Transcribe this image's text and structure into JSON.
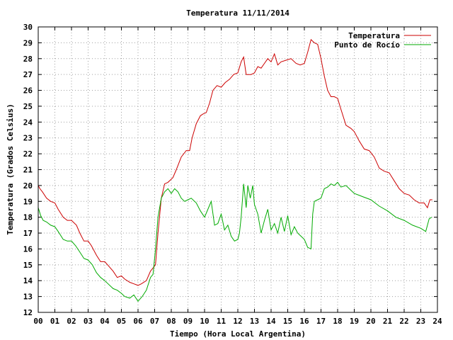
{
  "chart_data": {
    "type": "line",
    "title": "Temperatura 11/11/2014",
    "xlabel": "Tiempo (Hora Local Argentina)",
    "ylabel": "Temperatura (Grados Celsius)",
    "xlim": [
      0,
      24
    ],
    "ylim": [
      12,
      30
    ],
    "x_ticks": [
      "00",
      "01",
      "02",
      "03",
      "04",
      "05",
      "06",
      "07",
      "08",
      "09",
      "10",
      "11",
      "12",
      "13",
      "14",
      "15",
      "16",
      "17",
      "18",
      "19",
      "20",
      "21",
      "22",
      "23",
      "24"
    ],
    "y_ticks": [
      "12",
      "13",
      "14",
      "15",
      "16",
      "17",
      "18",
      "19",
      "20",
      "21",
      "22",
      "23",
      "24",
      "25",
      "26",
      "27",
      "28",
      "29",
      "30"
    ],
    "grid": true,
    "legend_position": "top-right",
    "series": [
      {
        "name": "Temperatura",
        "color": "#cc0000",
        "x": [
          0,
          0.1,
          0.25,
          0.5,
          0.75,
          1,
          1.2,
          1.5,
          1.75,
          2,
          2.3,
          2.5,
          2.75,
          3,
          3.2,
          3.5,
          3.75,
          4,
          4.25,
          4.5,
          4.75,
          5,
          5.2,
          5.5,
          5.75,
          6,
          6.2,
          6.5,
          6.75,
          6.9,
          7.05,
          7.2,
          7.4,
          7.6,
          7.8,
          8.1,
          8.3,
          8.6,
          8.9,
          9.1,
          9.25,
          9.5,
          9.75,
          9.9,
          10.1,
          10.3,
          10.5,
          10.75,
          11,
          11.25,
          11.5,
          11.75,
          12.0,
          12.2,
          12.35,
          12.5,
          12.8,
          13.0,
          13.2,
          13.4,
          13.6,
          13.8,
          14.0,
          14.2,
          14.4,
          14.6,
          14.9,
          15.2,
          15.5,
          15.75,
          16.0,
          16.2,
          16.4,
          16.6,
          16.8,
          17.0,
          17.2,
          17.4,
          17.6,
          17.8,
          18.0,
          18.2,
          18.5,
          18.8,
          19.0,
          19.3,
          19.6,
          19.9,
          20.2,
          20.5,
          20.8,
          21.1,
          21.4,
          21.7,
          22.0,
          22.3,
          22.6,
          22.9,
          23.2,
          23.4,
          23.55,
          23.7
        ],
        "values": [
          20.0,
          19.8,
          19.6,
          19.2,
          19.0,
          18.9,
          18.5,
          18.0,
          17.8,
          17.8,
          17.5,
          17.0,
          16.5,
          16.5,
          16.2,
          15.6,
          15.2,
          15.2,
          14.9,
          14.6,
          14.2,
          14.3,
          14.1,
          13.9,
          13.8,
          13.7,
          13.8,
          14.0,
          14.6,
          14.8,
          15.0,
          17.0,
          19.2,
          20.1,
          20.2,
          20.5,
          21.0,
          21.8,
          22.2,
          22.2,
          23.0,
          23.9,
          24.4,
          24.5,
          24.6,
          25.2,
          26.0,
          26.3,
          26.2,
          26.5,
          26.7,
          27.0,
          27.1,
          27.8,
          28.1,
          27.0,
          27.0,
          27.1,
          27.5,
          27.4,
          27.7,
          28.0,
          27.8,
          28.3,
          27.6,
          27.8,
          27.9,
          28.0,
          27.7,
          27.6,
          27.7,
          28.4,
          29.2,
          29.0,
          28.9,
          28.0,
          26.9,
          26.0,
          25.6,
          25.6,
          25.5,
          24.8,
          23.8,
          23.6,
          23.4,
          22.8,
          22.3,
          22.2,
          21.8,
          21.1,
          20.9,
          20.8,
          20.3,
          19.8,
          19.5,
          19.4,
          19.1,
          18.9,
          18.9,
          18.6,
          19.1,
          19.1
        ]
      },
      {
        "name": "Punto de Rocío",
        "color": "#00aa00",
        "x": [
          0,
          0.15,
          0.3,
          0.5,
          0.75,
          1,
          1.2,
          1.5,
          1.75,
          2,
          2.25,
          2.5,
          2.75,
          3,
          3.25,
          3.5,
          3.75,
          4,
          4.2,
          4.5,
          4.75,
          5,
          5.2,
          5.5,
          5.75,
          6,
          6.25,
          6.5,
          6.75,
          6.9,
          7.05,
          7.2,
          7.4,
          7.6,
          7.8,
          8.0,
          8.2,
          8.4,
          8.6,
          8.8,
          9.0,
          9.2,
          9.5,
          9.75,
          10.0,
          10.2,
          10.4,
          10.6,
          10.8,
          11.0,
          11.2,
          11.4,
          11.6,
          11.8,
          12.0,
          12.1,
          12.2,
          12.35,
          12.5,
          12.6,
          12.75,
          12.9,
          13.0,
          13.2,
          13.4,
          13.6,
          13.8,
          14.0,
          14.2,
          14.4,
          14.6,
          14.8,
          15.0,
          15.2,
          15.4,
          15.6,
          15.8,
          16.0,
          16.2,
          16.4,
          16.5,
          16.6,
          16.8,
          17.0,
          17.2,
          17.4,
          17.6,
          17.8,
          18.0,
          18.2,
          18.5,
          18.8,
          19.0,
          19.5,
          20.0,
          20.5,
          21.0,
          21.5,
          22.0,
          22.5,
          23.0,
          23.3,
          23.5,
          23.65
        ],
        "values": [
          18.6,
          18.1,
          17.8,
          17.7,
          17.5,
          17.4,
          17.1,
          16.6,
          16.5,
          16.5,
          16.2,
          15.8,
          15.4,
          15.3,
          15.0,
          14.5,
          14.2,
          14.0,
          13.8,
          13.5,
          13.4,
          13.2,
          13.0,
          12.9,
          13.1,
          12.7,
          13.0,
          13.4,
          14.2,
          14.4,
          16.0,
          18.0,
          19.2,
          19.6,
          19.8,
          19.5,
          19.8,
          19.6,
          19.2,
          19.0,
          19.1,
          19.2,
          18.9,
          18.4,
          18.0,
          18.5,
          19.0,
          17.5,
          17.6,
          18.2,
          17.2,
          17.5,
          16.8,
          16.5,
          16.6,
          17.0,
          18.0,
          20.1,
          18.6,
          20.0,
          19.2,
          20.0,
          18.8,
          18.2,
          17.0,
          17.8,
          18.5,
          17.2,
          17.6,
          17.0,
          18.0,
          17.1,
          18.1,
          16.9,
          17.4,
          17.0,
          16.8,
          16.6,
          16.1,
          16.0,
          18.2,
          19.0,
          19.1,
          19.2,
          19.8,
          19.9,
          20.1,
          20.0,
          20.2,
          19.9,
          20.0,
          19.7,
          19.5,
          19.3,
          19.1,
          18.7,
          18.4,
          18.0,
          17.8,
          17.5,
          17.3,
          17.1,
          17.9,
          18.0
        ]
      }
    ]
  }
}
